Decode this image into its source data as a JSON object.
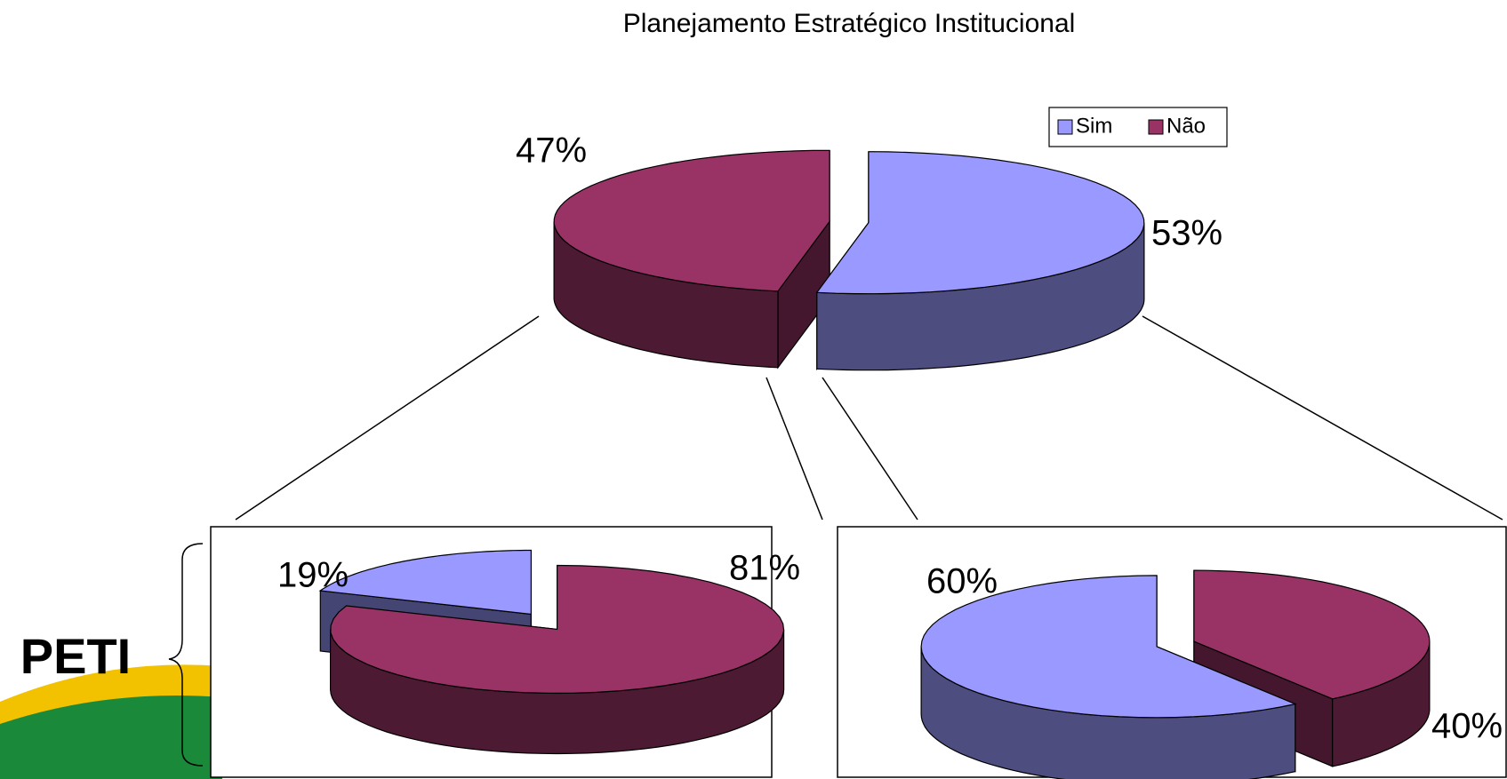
{
  "chart_data": [
    {
      "type": "pie",
      "title": "Planejamento Estratégico Institucional",
      "categories": [
        "Sim",
        "Não"
      ],
      "values": [
        53,
        47
      ],
      "value_labels": [
        "53%",
        "47%"
      ],
      "colors": [
        "#9999ff",
        "#993366"
      ],
      "legend": "top-right"
    },
    {
      "type": "pie",
      "values": [
        19,
        81
      ],
      "value_labels": [
        "19%",
        "81%"
      ],
      "colors": [
        "#9999ff",
        "#993366"
      ]
    },
    {
      "type": "pie",
      "values": [
        60,
        40
      ],
      "value_labels": [
        "60%",
        "40%"
      ],
      "colors": [
        "#9999ff",
        "#993366"
      ]
    }
  ],
  "side_label": "PETI"
}
